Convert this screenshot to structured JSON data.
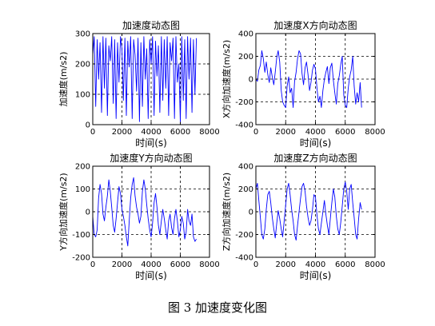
{
  "figure_caption": "图 3  加速度变化图",
  "colors": {
    "line": "#0000ff",
    "axes": "#000000",
    "grid": "#000000"
  },
  "chart_data": [
    {
      "type": "line",
      "title": "加速度动态图",
      "xlabel": "时间(s)",
      "ylabel": "加速度(m/s2)",
      "xlim": [
        0,
        8000
      ],
      "ylim": [
        0,
        300
      ],
      "xticks": [
        0,
        2000,
        4000,
        6000,
        8000
      ],
      "yticks": [
        0,
        100,
        200,
        300
      ],
      "grid": "dashed",
      "series": [
        {
          "x": [
            0,
            100,
            200,
            300,
            400,
            500,
            600,
            700,
            800,
            900,
            1000,
            1100,
            1200,
            1300,
            1400,
            1500,
            1600,
            1700,
            1800,
            1900,
            2000,
            2100,
            2200,
            2300,
            2400,
            2500,
            2600,
            2700,
            2800,
            2900,
            3000,
            3100,
            3200,
            3300,
            3400,
            3500,
            3600,
            3700,
            3800,
            3900,
            4000,
            4100,
            4200,
            4300,
            4400,
            4500,
            4600,
            4700,
            4800,
            4900,
            5000,
            5100,
            5200,
            5300,
            5400,
            5500,
            5600,
            5700,
            5800,
            5900,
            6000,
            6100,
            6200,
            6300,
            6400,
            6500,
            6600,
            6700,
            6800,
            6900,
            7000,
            7100
          ],
          "y": [
            230,
            290,
            60,
            280,
            150,
            270,
            40,
            290,
            120,
            285,
            30,
            260,
            210,
            290,
            70,
            280,
            20,
            270,
            140,
            290,
            250,
            80,
            285,
            30,
            275,
            190,
            290,
            20,
            280,
            230,
            110,
            285,
            10,
            270,
            60,
            290,
            150,
            250,
            20,
            280,
            200,
            290,
            30,
            275,
            160,
            260,
            40,
            290,
            80,
            280,
            120,
            290,
            30,
            270,
            210,
            285,
            20,
            290,
            140,
            200,
            10,
            290,
            80,
            280,
            20,
            290,
            150,
            285,
            40,
            280,
            100,
            285
          ]
        }
      ]
    },
    {
      "type": "line",
      "title": "加速度X方向动态图",
      "xlabel": "时间(s)",
      "ylabel": "X方向加速度(m/s2)",
      "xlim": [
        0,
        8000
      ],
      "ylim": [
        -400,
        400
      ],
      "xticks": [
        0,
        2000,
        4000,
        6000,
        8000
      ],
      "yticks": [
        -400,
        -200,
        0,
        200,
        400
      ],
      "grid": "dashed",
      "series": [
        {
          "x": [
            0,
            100,
            200,
            300,
            400,
            500,
            600,
            700,
            800,
            900,
            1000,
            1100,
            1200,
            1300,
            1400,
            1500,
            1600,
            1700,
            1800,
            1900,
            2000,
            2100,
            2200,
            2300,
            2400,
            2500,
            2600,
            2700,
            2800,
            2900,
            3000,
            3100,
            3200,
            3300,
            3400,
            3500,
            3600,
            3700,
            3800,
            3900,
            4000,
            4100,
            4200,
            4300,
            4400,
            4500,
            4600,
            4700,
            4800,
            4900,
            5000,
            5100,
            5200,
            5300,
            5400,
            5500,
            5600,
            5700,
            5800,
            5900,
            6000,
            6100,
            6200,
            6300,
            6400,
            6500,
            6600,
            6700,
            6800,
            6900,
            7000,
            7100
          ],
          "y": [
            0,
            -20,
            80,
            120,
            250,
            180,
            60,
            150,
            40,
            -30,
            100,
            20,
            -50,
            60,
            190,
            250,
            150,
            -100,
            -200,
            -230,
            -250,
            -60,
            20,
            -120,
            -80,
            -250,
            -20,
            60,
            180,
            250,
            220,
            50,
            -50,
            100,
            150,
            40,
            -100,
            -30,
            80,
            130,
            90,
            -80,
            -200,
            -150,
            -250,
            -100,
            0,
            60,
            110,
            -40,
            100,
            140,
            -10,
            -120,
            -220,
            -40,
            30,
            130,
            200,
            -140,
            -230,
            -250,
            -80,
            20,
            80,
            200,
            -60,
            -220,
            -120,
            -200,
            -30,
            -250
          ]
        }
      ]
    },
    {
      "type": "line",
      "title": "加速度Y方向动态图",
      "xlabel": "时间(s)",
      "ylabel": "Y方向加速度(m/s2)",
      "xlim": [
        0,
        8000
      ],
      "ylim": [
        -200,
        200
      ],
      "xticks": [
        0,
        2000,
        4000,
        6000,
        8000
      ],
      "yticks": [
        -200,
        -100,
        0,
        100,
        200
      ],
      "grid": "dashed",
      "series": [
        {
          "x": [
            0,
            100,
            200,
            300,
            400,
            500,
            600,
            700,
            800,
            900,
            1000,
            1100,
            1200,
            1300,
            1400,
            1500,
            1600,
            1700,
            1800,
            1900,
            2000,
            2100,
            2200,
            2300,
            2400,
            2500,
            2600,
            2700,
            2800,
            2900,
            3000,
            3100,
            3200,
            3300,
            3400,
            3500,
            3600,
            3700,
            3800,
            3900,
            4000,
            4100,
            4200,
            4300,
            4400,
            4500,
            4600,
            4700,
            4800,
            4900,
            5000,
            5100,
            5200,
            5300,
            5400,
            5500,
            5600,
            5700,
            5800,
            5900,
            6000,
            6100,
            6200,
            6300,
            6400,
            6500,
            6600,
            6700,
            6800,
            6900,
            7000,
            7100
          ],
          "y": [
            -20,
            -100,
            -110,
            -80,
            60,
            120,
            80,
            -10,
            -40,
            20,
            70,
            140,
            90,
            20,
            -60,
            -90,
            -30,
            40,
            110,
            80,
            10,
            -20,
            -60,
            -110,
            -150,
            -40,
            60,
            120,
            150,
            70,
            20,
            -10,
            -50,
            -20,
            90,
            140,
            100,
            30,
            -30,
            -80,
            -110,
            -50,
            40,
            80,
            20,
            -60,
            -100,
            -40,
            10,
            -30,
            -80,
            -120,
            -40,
            -10,
            -70,
            -100,
            -30,
            10,
            -40,
            -110,
            -80,
            -20,
            -50,
            -120,
            -90,
            10,
            -40,
            -60,
            -10,
            -110,
            -130,
            -120
          ]
        }
      ]
    },
    {
      "type": "line",
      "title": "加速度Z方向动态图",
      "xlabel": "时间(s)",
      "ylabel": "Z方向加速度(m/s2)",
      "xlim": [
        0,
        8000
      ],
      "ylim": [
        -400,
        400
      ],
      "xticks": [
        0,
        2000,
        4000,
        6000,
        8000
      ],
      "yticks": [
        -400,
        -200,
        0,
        200,
        400
      ],
      "grid": "dashed",
      "series": [
        {
          "x": [
            0,
            100,
            200,
            300,
            400,
            500,
            600,
            700,
            800,
            900,
            1000,
            1100,
            1200,
            1300,
            1400,
            1500,
            1600,
            1700,
            1800,
            1900,
            2000,
            2100,
            2200,
            2300,
            2400,
            2500,
            2600,
            2700,
            2800,
            2900,
            3000,
            3100,
            3200,
            3300,
            3400,
            3500,
            3600,
            3700,
            3800,
            3900,
            4000,
            4100,
            4200,
            4300,
            4400,
            4500,
            4600,
            4700,
            4800,
            4900,
            5000,
            5100,
            5200,
            5300,
            5400,
            5500,
            5600,
            5700,
            5800,
            5900,
            6000,
            6100,
            6200,
            6300,
            6400,
            6500,
            6600,
            6700,
            6800,
            6900,
            7000,
            7100
          ],
          "y": [
            200,
            250,
            100,
            -50,
            -200,
            -240,
            -150,
            20,
            150,
            180,
            80,
            -50,
            -150,
            -230,
            -100,
            10,
            -60,
            -150,
            -220,
            -80,
            60,
            200,
            250,
            150,
            20,
            -80,
            -200,
            -250,
            -120,
            0,
            120,
            220,
            250,
            180,
            50,
            -50,
            -120,
            -80,
            20,
            150,
            130,
            -30,
            -150,
            -200,
            -100,
            0,
            100,
            -20,
            -120,
            -200,
            -60,
            80,
            200,
            130,
            -40,
            -150,
            -200,
            -90,
            50,
            200,
            260,
            180,
            20,
            200,
            240,
            80,
            -50,
            -200,
            -240,
            -60,
            80,
            20
          ]
        }
      ]
    }
  ]
}
